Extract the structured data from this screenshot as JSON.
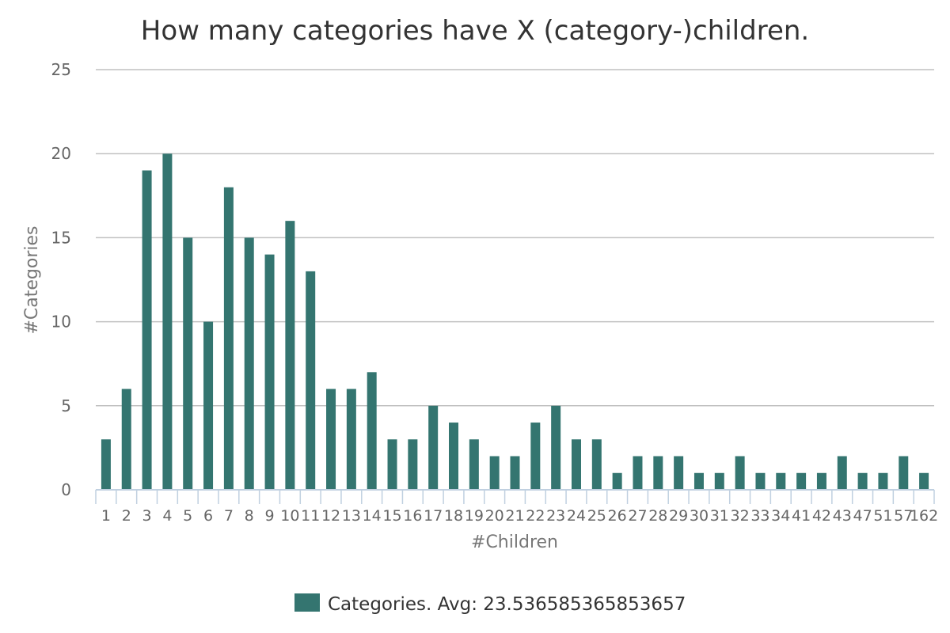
{
  "chart_data": {
    "type": "bar",
    "title": "How many categories have X (category-)children.",
    "xlabel": "#Children",
    "ylabel": "#Categories",
    "ylim": [
      0,
      25
    ],
    "yticks": [
      0,
      5,
      10,
      15,
      20,
      25
    ],
    "grid": true,
    "legend_position": "bottom-center",
    "categories": [
      "1",
      "2",
      "3",
      "4",
      "5",
      "6",
      "7",
      "8",
      "9",
      "10",
      "11",
      "12",
      "13",
      "14",
      "15",
      "16",
      "17",
      "18",
      "19",
      "20",
      "21",
      "22",
      "23",
      "24",
      "25",
      "26",
      "27",
      "28",
      "29",
      "30",
      "31",
      "32",
      "33",
      "34",
      "41",
      "42",
      "43",
      "47",
      "51",
      "57",
      "162"
    ],
    "series": [
      {
        "name": "Categories. Avg: 23.536585365853657",
        "color": "#347570",
        "values": [
          3,
          6,
          19,
          20,
          15,
          10,
          18,
          15,
          14,
          16,
          13,
          6,
          6,
          7,
          3,
          3,
          5,
          4,
          3,
          2,
          2,
          4,
          5,
          3,
          3,
          1,
          2,
          2,
          2,
          1,
          1,
          2,
          1,
          1,
          1,
          1,
          2,
          1,
          1,
          2,
          1
        ]
      }
    ]
  }
}
